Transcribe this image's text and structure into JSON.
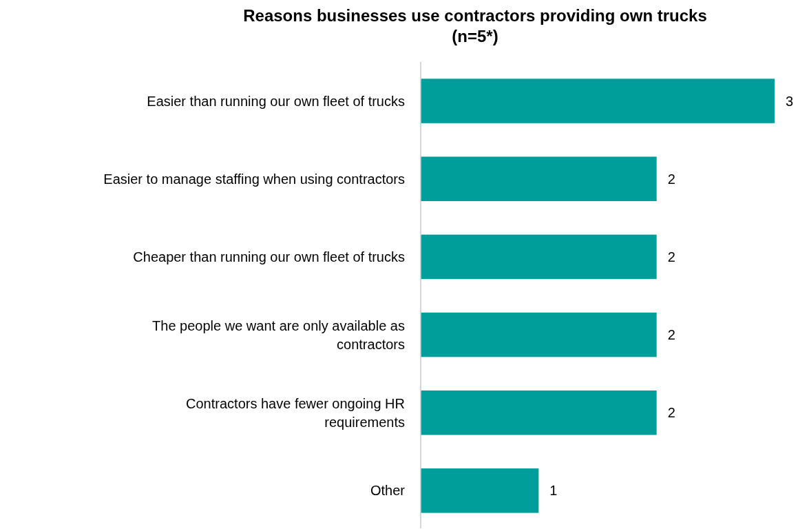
{
  "chart_data": {
    "type": "bar",
    "orientation": "horizontal",
    "title": "Reasons businesses use contractors providing own trucks\n(n=5*)",
    "categories": [
      "Easier than running our own fleet of trucks",
      "Easier to manage staffing when using contractors",
      "Cheaper than running our own fleet of trucks",
      "The people we want are only available as\ncontractors",
      "Contractors have fewer ongoing HR\nrequirements",
      "Other"
    ],
    "values": [
      3,
      2,
      2,
      2,
      2,
      1
    ],
    "color": "#009e9a",
    "xlim": [
      0,
      3
    ],
    "data_labels": true
  }
}
